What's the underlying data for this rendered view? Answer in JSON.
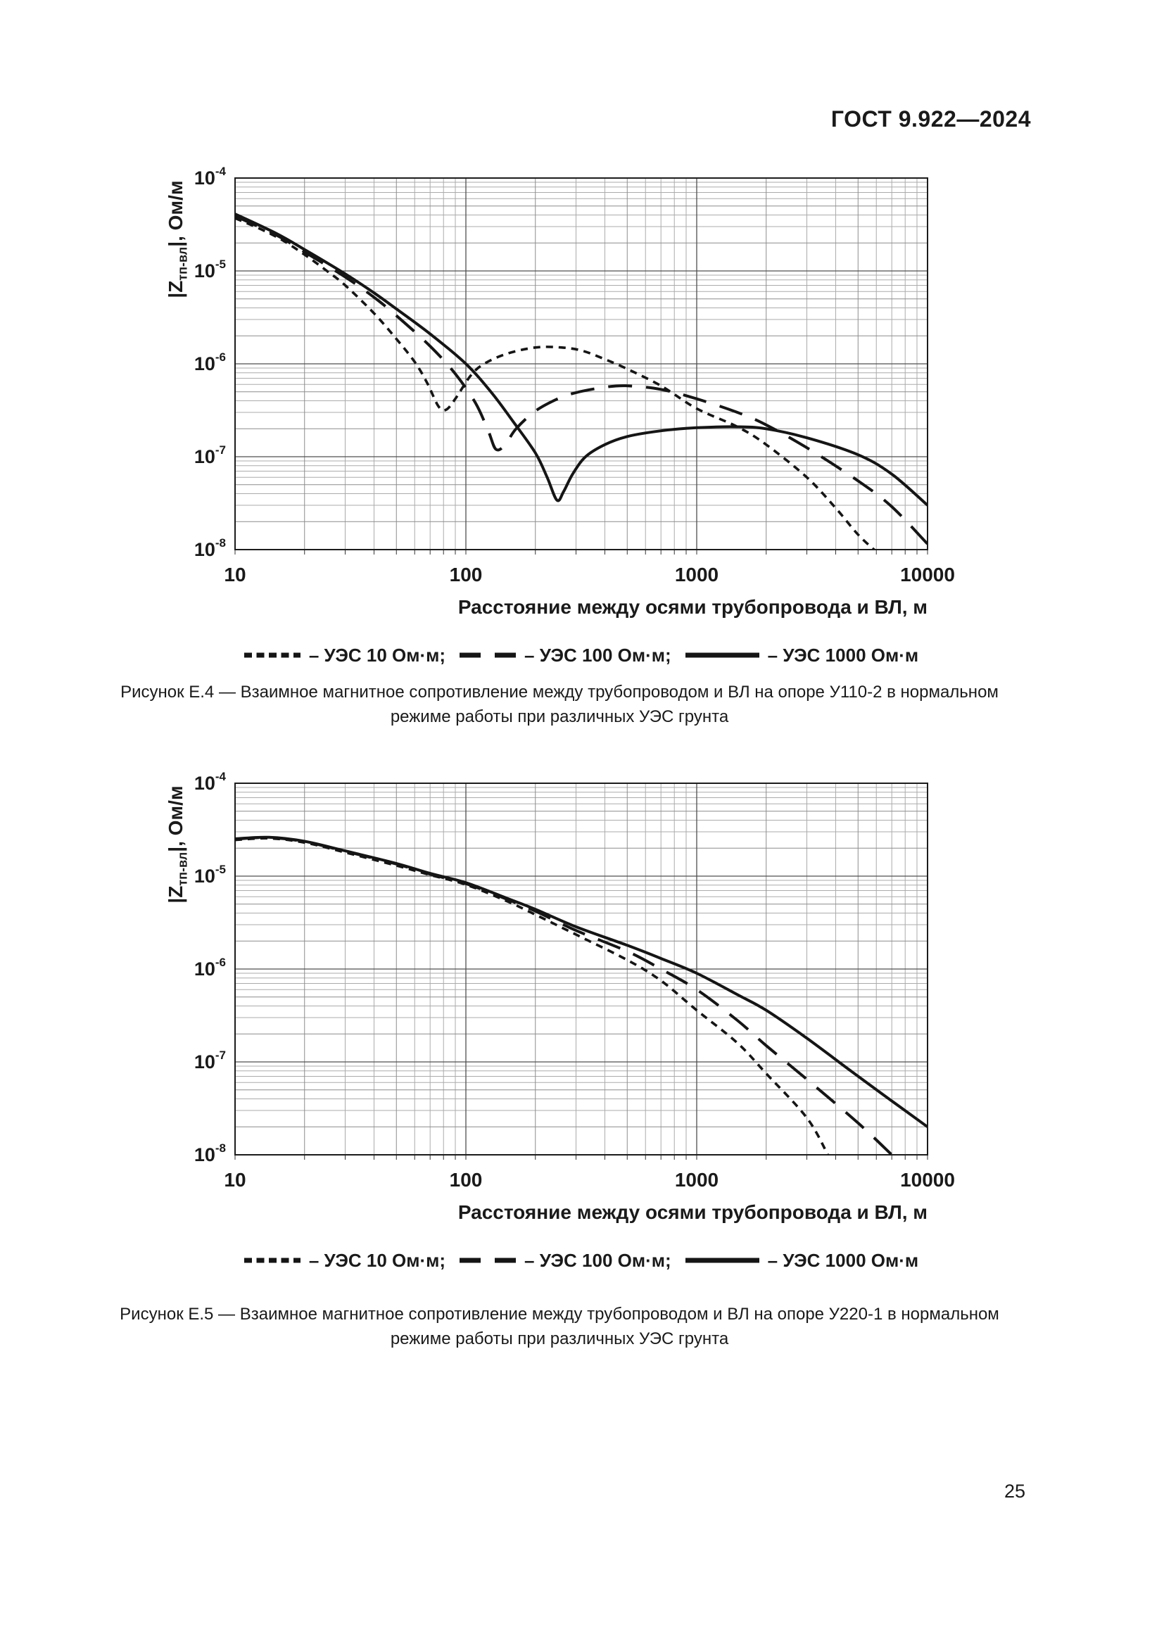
{
  "page": {
    "header": "ГОСТ 9.922—2024",
    "page_number": "25"
  },
  "chart_data": [
    {
      "type": "line",
      "x_scale": "log",
      "y_scale": "log",
      "xlim": [
        10,
        10000
      ],
      "ylim": [
        1e-08,
        0.0001
      ],
      "x_tick_labels": [
        "10",
        "100",
        "1000",
        "10000"
      ],
      "y_tick_exponents": [
        -4,
        -5,
        -6,
        -7,
        -8
      ],
      "xlabel": "Расстояние между осями трубопровода и ВЛ, м",
      "ylabel": {
        "prefix": "|Z",
        "sub": "тп-вл",
        "suffix": "|, Ом/м"
      },
      "grid": true,
      "legend_position": "below",
      "caption_lines": [
        "Рисунок Е.4 — Взаимное магнитное сопротивление между трубопроводом и ВЛ на опоре У110-2 в нормальном",
        "режиме работы при различных УЭС грунта"
      ],
      "series": [
        {
          "name": "УЭС 10 Ом·м",
          "legend_label": "– УЭС 10 Ом·м;",
          "line_style": "dotted",
          "points": [
            [
              10,
              3.7e-05
            ],
            [
              13,
              2.8e-05
            ],
            [
              16,
              2.15e-05
            ],
            [
              20,
              1.5e-05
            ],
            [
              25,
              1e-05
            ],
            [
              30,
              7e-06
            ],
            [
              40,
              3.5e-06
            ],
            [
              50,
              1.85e-06
            ],
            [
              60,
              1.05e-06
            ],
            [
              68,
              6.2e-07
            ],
            [
              76,
              3.5e-07
            ],
            [
              82,
              3.2e-07
            ],
            [
              90,
              4.2e-07
            ],
            [
              105,
              7.5e-07
            ],
            [
              120,
              1e-06
            ],
            [
              150,
              1.28e-06
            ],
            [
              200,
              1.5e-06
            ],
            [
              260,
              1.5e-06
            ],
            [
              320,
              1.38e-06
            ],
            [
              400,
              1.12e-06
            ],
            [
              500,
              8.8e-07
            ],
            [
              700,
              5.8e-07
            ],
            [
              1000,
              3.3e-07
            ],
            [
              1500,
              2.1e-07
            ],
            [
              2000,
              1.35e-07
            ],
            [
              3000,
              6e-08
            ],
            [
              4000,
              2.8e-08
            ],
            [
              5000,
              1.45e-08
            ],
            [
              6000,
              9.5e-09
            ]
          ]
        },
        {
          "name": "УЭС 100 Ом·м",
          "legend_label": "– УЭС 100 Ом·м;",
          "line_style": "dashed",
          "points": [
            [
              10,
              3.9e-05
            ],
            [
              15,
              2.45e-05
            ],
            [
              20,
              1.6e-05
            ],
            [
              30,
              8.6e-06
            ],
            [
              40,
              5.2e-06
            ],
            [
              50,
              3.3e-06
            ],
            [
              70,
              1.55e-06
            ],
            [
              90,
              7.8e-07
            ],
            [
              110,
              3.8e-07
            ],
            [
              125,
              1.9e-07
            ],
            [
              135,
              1.2e-07
            ],
            [
              148,
              1.35e-07
            ],
            [
              165,
              2e-07
            ],
            [
              200,
              3.1e-07
            ],
            [
              250,
              4.2e-07
            ],
            [
              300,
              4.9e-07
            ],
            [
              400,
              5.6e-07
            ],
            [
              500,
              5.8e-07
            ],
            [
              700,
              5.3e-07
            ],
            [
              1000,
              4.2e-07
            ],
            [
              1500,
              3e-07
            ],
            [
              2000,
              2.2e-07
            ],
            [
              3000,
              1.25e-07
            ],
            [
              5000,
              5.5e-08
            ],
            [
              7000,
              2.9e-08
            ],
            [
              10000,
              1.15e-08
            ]
          ]
        },
        {
          "name": "УЭС 1000 Ом·м",
          "legend_label": "– УЭС 1000 Ом·м",
          "line_style": "solid",
          "points": [
            [
              10,
              4.1e-05
            ],
            [
              15,
              2.55e-05
            ],
            [
              20,
              1.7e-05
            ],
            [
              30,
              9.3e-06
            ],
            [
              40,
              5.8e-06
            ],
            [
              50,
              3.9e-06
            ],
            [
              70,
              2.1e-06
            ],
            [
              100,
              1e-06
            ],
            [
              130,
              4.8e-07
            ],
            [
              160,
              2.4e-07
            ],
            [
              200,
              1.1e-07
            ],
            [
              225,
              6e-08
            ],
            [
              248,
              3.4e-08
            ],
            [
              265,
              4.2e-08
            ],
            [
              290,
              6.5e-08
            ],
            [
              330,
              1e-07
            ],
            [
              400,
              1.35e-07
            ],
            [
              500,
              1.65e-07
            ],
            [
              700,
              1.9e-07
            ],
            [
              1000,
              2.05e-07
            ],
            [
              1500,
              2.1e-07
            ],
            [
              2000,
              2e-07
            ],
            [
              3000,
              1.6e-07
            ],
            [
              5000,
              1.05e-07
            ],
            [
              7000,
              6.5e-08
            ],
            [
              10000,
              3e-08
            ]
          ]
        }
      ]
    },
    {
      "type": "line",
      "x_scale": "log",
      "y_scale": "log",
      "xlim": [
        10,
        10000
      ],
      "ylim": [
        1e-08,
        0.0001
      ],
      "x_tick_labels": [
        "10",
        "100",
        "1000",
        "10000"
      ],
      "y_tick_exponents": [
        -4,
        -5,
        -6,
        -7,
        -8
      ],
      "xlabel": "Расстояние между осями трубопровода и ВЛ, м",
      "ylabel": {
        "prefix": "|Z",
        "sub": "тп-вл",
        "suffix": "|, Ом/м"
      },
      "grid": true,
      "legend_position": "below",
      "caption_lines": [
        "Рисунок Е.5 — Взаимное магнитное сопротивление между трубопроводом и ВЛ на опоре У220-1 в нормальном",
        "режиме работы при различных УЭС грунта"
      ],
      "series": [
        {
          "name": "УЭС 10 Ом·м",
          "legend_label": "– УЭС 10 Ом·м;",
          "line_style": "dotted",
          "points": [
            [
              10,
              2.45e-05
            ],
            [
              14,
              2.55e-05
            ],
            [
              20,
              2.3e-05
            ],
            [
              30,
              1.8e-05
            ],
            [
              50,
              1.3e-05
            ],
            [
              70,
              1.03e-05
            ],
            [
              100,
              8.1e-06
            ],
            [
              150,
              5.4e-06
            ],
            [
              200,
              3.85e-06
            ],
            [
              300,
              2.35e-06
            ],
            [
              500,
              1.25e-06
            ],
            [
              700,
              7.5e-07
            ],
            [
              1000,
              3.6e-07
            ],
            [
              1500,
              1.6e-07
            ],
            [
              2000,
              7.5e-08
            ],
            [
              3000,
              2.5e-08
            ],
            [
              3700,
              1e-08
            ]
          ]
        },
        {
          "name": "УЭС 100 Ом·м",
          "legend_label": "– УЭС 100 Ом·м;",
          "line_style": "dashed",
          "points": [
            [
              10,
              2.5e-05
            ],
            [
              14,
              2.6e-05
            ],
            [
              20,
              2.35e-05
            ],
            [
              30,
              1.85e-05
            ],
            [
              50,
              1.35e-05
            ],
            [
              70,
              1.05e-05
            ],
            [
              100,
              8.3e-06
            ],
            [
              150,
              5.65e-06
            ],
            [
              200,
              4.2e-06
            ],
            [
              300,
              2.6e-06
            ],
            [
              500,
              1.55e-06
            ],
            [
              700,
              1e-06
            ],
            [
              1000,
              6e-07
            ],
            [
              1500,
              2.8e-07
            ],
            [
              2000,
              1.5e-07
            ],
            [
              3000,
              6.5e-08
            ],
            [
              5000,
              2.2e-08
            ],
            [
              7000,
              1e-08
            ]
          ]
        },
        {
          "name": "УЭС 1000 Ом·м",
          "legend_label": "– УЭС 1000 Ом·м",
          "line_style": "solid",
          "points": [
            [
              10,
              2.52e-05
            ],
            [
              14,
              2.62e-05
            ],
            [
              20,
              2.37e-05
            ],
            [
              30,
              1.87e-05
            ],
            [
              50,
              1.37e-05
            ],
            [
              70,
              1.07e-05
            ],
            [
              100,
              8.5e-06
            ],
            [
              150,
              5.8e-06
            ],
            [
              200,
              4.4e-06
            ],
            [
              300,
              2.85e-06
            ],
            [
              500,
              1.8e-06
            ],
            [
              700,
              1.3e-06
            ],
            [
              1000,
              9e-07
            ],
            [
              1500,
              5.3e-07
            ],
            [
              2000,
              3.6e-07
            ],
            [
              3000,
              1.8e-07
            ],
            [
              5000,
              7e-08
            ],
            [
              7000,
              3.8e-08
            ],
            [
              10000,
              2e-08
            ]
          ]
        }
      ]
    }
  ],
  "style": {
    "curve_color": "#151515",
    "grid_minor_color": "#ababab",
    "grid_minor_emphasis_color": "#8c8c8c",
    "grid_major_color": "#4f4f4f",
    "border_color": "#1c1c1c"
  }
}
